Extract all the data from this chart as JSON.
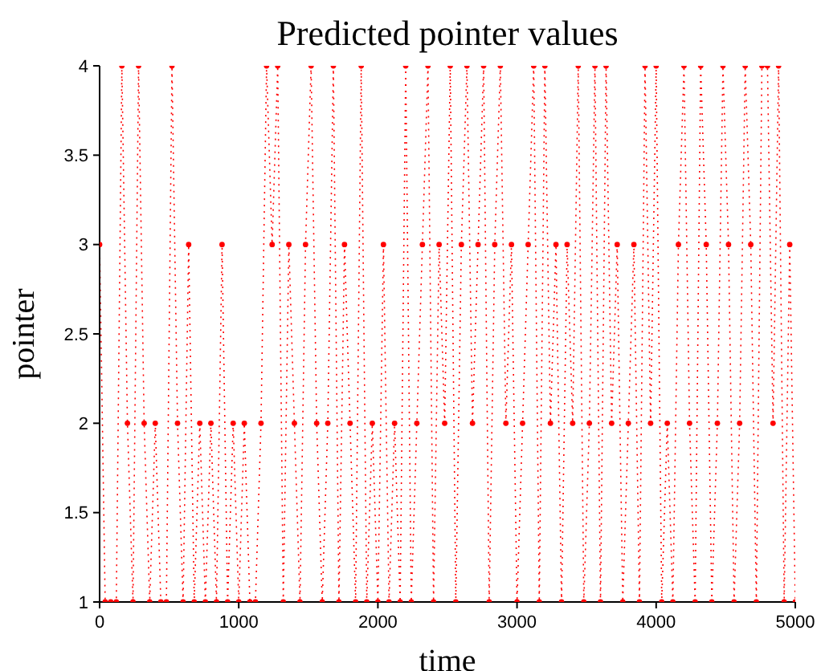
{
  "chart_data": {
    "type": "line",
    "title": "Predicted pointer values",
    "xlabel": "time",
    "ylabel": "pointer",
    "x": [
      0,
      40,
      80,
      120,
      160,
      200,
      240,
      280,
      320,
      360,
      400,
      440,
      480,
      520,
      560,
      600,
      640,
      680,
      720,
      760,
      800,
      840,
      880,
      920,
      960,
      1000,
      1040,
      1080,
      1120,
      1160,
      1200,
      1240,
      1280,
      1320,
      1360,
      1400,
      1440,
      1480,
      1520,
      1560,
      1600,
      1640,
      1680,
      1720,
      1760,
      1800,
      1840,
      1880,
      1920,
      1960,
      2000,
      2040,
      2080,
      2120,
      2160,
      2200,
      2240,
      2280,
      2320,
      2360,
      2400,
      2440,
      2480,
      2520,
      2560,
      2600,
      2640,
      2680,
      2720,
      2760,
      2800,
      2840,
      2880,
      2920,
      2960,
      3000,
      3040,
      3080,
      3120,
      3160,
      3200,
      3240,
      3280,
      3320,
      3360,
      3400,
      3440,
      3480,
      3520,
      3560,
      3600,
      3640,
      3680,
      3720,
      3760,
      3800,
      3840,
      3880,
      3920,
      3960,
      4000,
      4040,
      4080,
      4120,
      4160,
      4200,
      4240,
      4280,
      4320,
      4360,
      4400,
      4440,
      4480,
      4520,
      4560,
      4600,
      4640,
      4680,
      4720,
      4760,
      4800,
      4840,
      4880,
      4920,
      4960,
      5000
    ],
    "series": [
      {
        "color": "#ff0000",
        "values": [
          3,
          1,
          1,
          1,
          4,
          2,
          1,
          4,
          2,
          1,
          2,
          1,
          1,
          4,
          2,
          1,
          3,
          1,
          2,
          1,
          2,
          1,
          3,
          1,
          2,
          1,
          2,
          1,
          1,
          2,
          4,
          3,
          4,
          1,
          3,
          2,
          1,
          3,
          4,
          2,
          1,
          2,
          4,
          1,
          3,
          2,
          1,
          4,
          1,
          2,
          1,
          3,
          1,
          2,
          1,
          4,
          1,
          2,
          3,
          4,
          1,
          3,
          2,
          4,
          1,
          3,
          4,
          2,
          3,
          4,
          1,
          3,
          4,
          2,
          3,
          1,
          2,
          3,
          4,
          1,
          4,
          2,
          3,
          1,
          3,
          2,
          4,
          1,
          2,
          4,
          1,
          4,
          2,
          3,
          1,
          2,
          3,
          1,
          4,
          2,
          4,
          1,
          2,
          1,
          3,
          4,
          2,
          1,
          4,
          3,
          1,
          2,
          4,
          3,
          1,
          2,
          4,
          3,
          1,
          4,
          4,
          2,
          4,
          1,
          3,
          1
        ]
      }
    ],
    "xlim": [
      0,
      5000
    ],
    "xticks": [
      0,
      1000,
      2000,
      3000,
      4000,
      5000
    ],
    "ylim": [
      1,
      4
    ],
    "yticks": [
      1,
      1.5,
      2,
      2.5,
      3,
      3.5,
      4
    ],
    "grid": false,
    "legend": false,
    "marker": "circle",
    "line_style": "dotted"
  }
}
